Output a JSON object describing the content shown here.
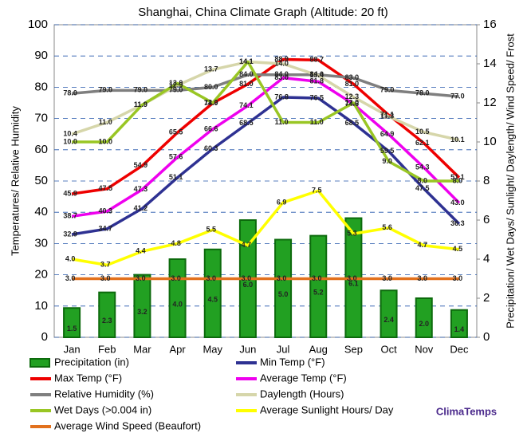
{
  "chart_data": {
    "type": "bar_line",
    "title": "Shanghai, China Climate Graph (Altitude: 20 ft)",
    "y_label": "Temperatures/ Relative Humidity",
    "y2_label": "Precipitation/ Wet Days/ Sunlight/ Daylength/ Wind Speed/ Frost",
    "watermark": "ClimaTemps",
    "categories": [
      "Jan",
      "Feb",
      "Mar",
      "Apr",
      "May",
      "Jun",
      "Jul",
      "Aug",
      "Sep",
      "Oct",
      "Nov",
      "Dec"
    ],
    "ylim": [
      0,
      100
    ],
    "yticks": [
      0,
      10,
      20,
      30,
      40,
      50,
      60,
      70,
      80,
      90,
      100
    ],
    "y2lim": [
      0,
      16
    ],
    "y2ticks": [
      0,
      2,
      4,
      6,
      8,
      10,
      12,
      14,
      16
    ],
    "grid": true,
    "series": [
      {
        "name": "Precipitation (in)",
        "kind": "bar",
        "axis": "y2",
        "color": "#22a022",
        "values": [
          1.5,
          2.3,
          3.2,
          4.0,
          4.5,
          6.0,
          5.0,
          5.2,
          6.1,
          2.4,
          2.0,
          1.4
        ],
        "value_labels": [
          "1.5",
          "2.3",
          "3.2",
          "4.0",
          "4.5",
          "6.0",
          "5.0",
          "5.2",
          "6.1",
          "2.4",
          "2.0",
          "1.4"
        ]
      },
      {
        "name": "Min Temp (°F)",
        "kind": "line",
        "color": "#2e3192",
        "values": [
          32.9,
          34.7,
          41.2,
          51.1,
          60.3,
          68.5,
          76.8,
          76.5,
          68.5,
          59.5,
          47.5,
          36.3
        ],
        "value_labels": [
          "32.9",
          "34.7",
          "41.2",
          "51.1",
          "60.3",
          "68.5",
          "76.8",
          "76.5",
          "68.5",
          "59.5",
          "47.5",
          "36.3"
        ]
      },
      {
        "name": "Max Temp (°F)",
        "kind": "line",
        "color": "#ee0000",
        "values": [
          45.9,
          47.5,
          54.9,
          65.5,
          74.9,
          81.0,
          88.9,
          88.7,
          81.0,
          71.1,
          62.1,
          51.1
        ],
        "value_labels": [
          "45.9",
          "47.5",
          "54.9",
          "65.5",
          "74.9",
          "81.0",
          "88.9",
          "88.7",
          "81.0",
          "71.1",
          "62.1",
          "51.1"
        ]
      },
      {
        "name": "Average Temp (°F)",
        "kind": "line",
        "color": "#ee00ee",
        "values": [
          38.7,
          40.3,
          47.3,
          57.6,
          66.6,
          74.1,
          83.0,
          81.8,
          74.6,
          64.9,
          54.3,
          43.0
        ],
        "value_labels": [
          "38.7",
          "40.3",
          "47.3",
          "57.6",
          "66.6",
          "74.1",
          "83.0",
          "81.8",
          "74.6",
          "64.9",
          "54.3",
          "43.0"
        ]
      },
      {
        "name": "Relative Humidity (%)",
        "kind": "line",
        "color": "#7f7f7f",
        "values": [
          78.0,
          79.0,
          79.0,
          79.0,
          80.0,
          84.0,
          84.0,
          84.0,
          83.0,
          79.0,
          78.0,
          77.0
        ],
        "value_labels": [
          "78.0",
          "79.0",
          "79.0",
          "79.0",
          "80.0",
          "84.0",
          "84.0",
          "84.0",
          "83.0",
          "79.0",
          "78.0",
          "77.0"
        ]
      },
      {
        "name": "Daylength (Hours)",
        "kind": "line",
        "axis": "y2",
        "color": "#d6d6aa",
        "values": [
          10.4,
          11.0,
          11.9,
          12.9,
          13.7,
          14.1,
          14.0,
          13.4,
          12.3,
          11.3,
          10.5,
          10.1
        ],
        "value_labels": [
          "10.4",
          "11.0",
          "11.9",
          "12.9",
          "13.7",
          "14.1",
          "14.0",
          "13.4",
          "12.3",
          "11.3",
          "10.5",
          "10.1"
        ]
      },
      {
        "name": "Wet Days (>0.004 in)",
        "kind": "line",
        "axis": "y2",
        "color": "#99c624",
        "values": [
          10.0,
          10.0,
          11.9,
          13.0,
          12.0,
          14.1,
          11.0,
          11.0,
          12.0,
          9.0,
          8.0,
          8.0
        ],
        "value_labels": [
          "10.0",
          "10.0",
          "11.9",
          "13.0",
          "12.0",
          "14.1",
          "11.0",
          "11.0",
          "12.0",
          "9.0",
          "8.0",
          "8.0"
        ]
      },
      {
        "name": "Average Sunlight Hours/ Day",
        "kind": "line",
        "axis": "y2",
        "color": "#ffff00",
        "values": [
          4.0,
          3.7,
          4.4,
          4.8,
          5.5,
          4.7,
          6.9,
          7.5,
          5.3,
          5.6,
          4.7,
          4.5
        ],
        "value_labels": [
          "4.0",
          "3.7",
          "4.4",
          "4.8",
          "5.5",
          "4.7",
          "6.9",
          "7.5",
          "5.3",
          "5.6",
          "4.7",
          "4.5"
        ]
      },
      {
        "name": "Average Wind Speed (Beaufort)",
        "kind": "line",
        "axis": "y2",
        "color": "#e2711d",
        "values": [
          3.0,
          3.0,
          3.0,
          3.0,
          3.0,
          3.0,
          3.0,
          3.0,
          3.0,
          3.0,
          3.0,
          3.0
        ],
        "value_labels": [
          "3.0",
          "3.0",
          "3.0",
          "3.0",
          "3.0",
          "3.0",
          "3.0",
          "3.0",
          "3.0",
          "3.0",
          "3.0",
          "3.0"
        ]
      }
    ]
  }
}
